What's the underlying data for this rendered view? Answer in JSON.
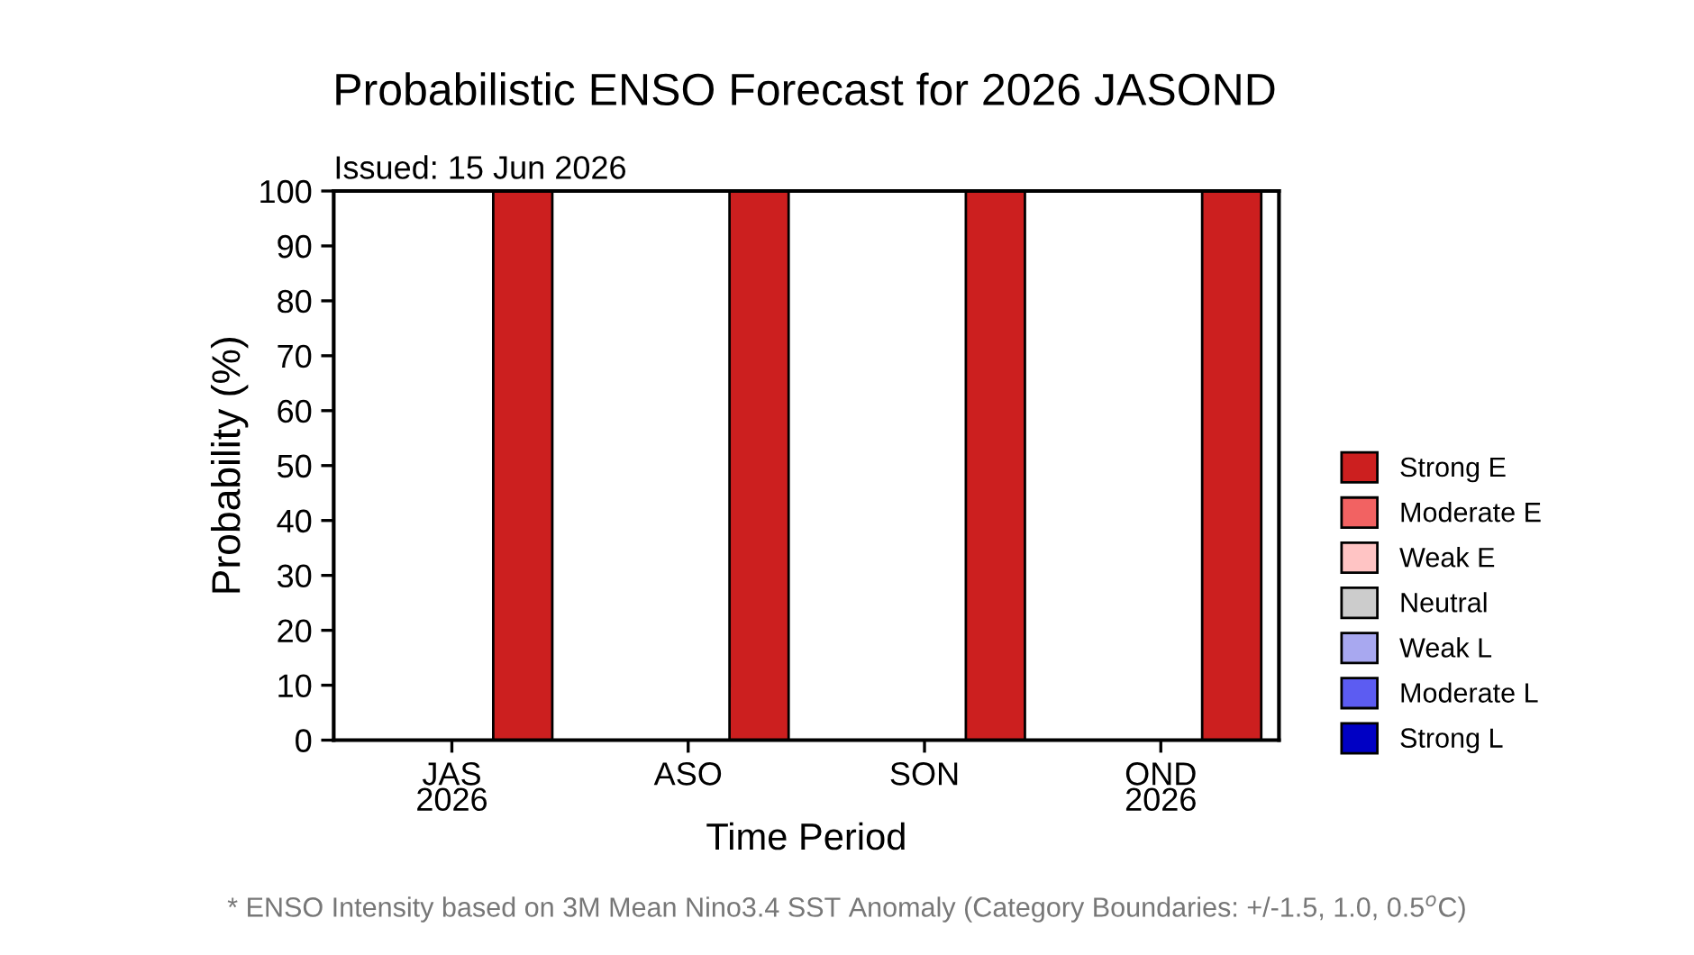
{
  "chart_data": {
    "type": "bar",
    "title": "Probabilistic ENSO Forecast for 2026 JASOND",
    "xlabel": "Time Period",
    "ylabel": "Probability (%)",
    "categories": [
      "JAS\n2026",
      "ASO",
      "SON",
      "OND\n2026"
    ],
    "series": [
      {
        "name": "Strong E",
        "color": "#cc1f1f",
        "values": [
          100,
          100,
          100,
          100
        ]
      },
      {
        "name": "Moderate E",
        "color": "#f26262",
        "values": [
          0,
          0,
          0,
          0
        ]
      },
      {
        "name": "Weak E",
        "color": "#ffc4c4",
        "values": [
          0,
          0,
          0,
          0
        ]
      },
      {
        "name": "Neutral",
        "color": "#cccccc",
        "values": [
          0,
          0,
          0,
          0
        ]
      },
      {
        "name": "Weak L",
        "color": "#a8a8f0",
        "values": [
          0,
          0,
          0,
          0
        ]
      },
      {
        "name": "Moderate L",
        "color": "#5c5cf2",
        "values": [
          0,
          0,
          0,
          0
        ]
      },
      {
        "name": "Strong L",
        "color": "#0000c4",
        "values": [
          0,
          0,
          0,
          0
        ]
      }
    ],
    "ylim": [
      0,
      100
    ],
    "yticks": [
      0,
      10,
      20,
      30,
      40,
      50,
      60,
      70,
      80,
      90,
      100
    ],
    "legend": "right",
    "grid": false,
    "annotations": [
      "Issued: 15 Jun 2026",
      "* ENSO Intensity based on 3M Mean Nino3.4 SST Anomaly (Category Boundaries: +/-1.5, 1.0, 0.5$^{o}$C)"
    ]
  }
}
